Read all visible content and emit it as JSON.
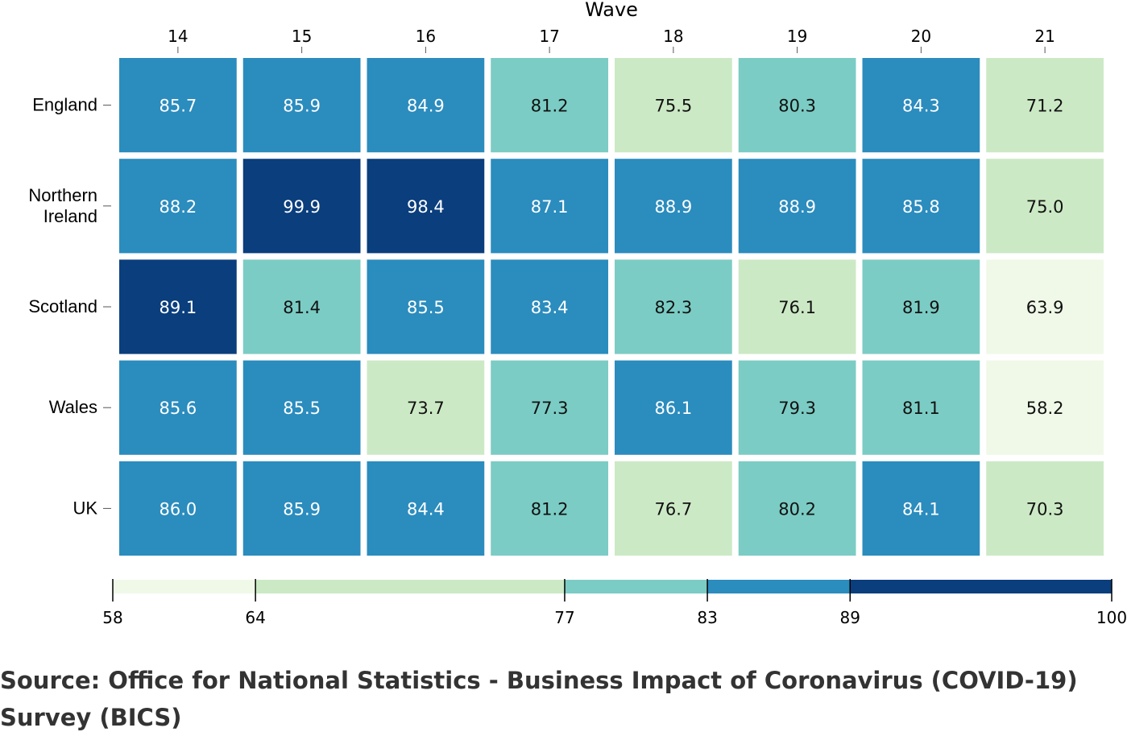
{
  "chart_data": {
    "type": "heatmap",
    "xlabel": "Wave",
    "columns": [
      "14",
      "15",
      "16",
      "17",
      "18",
      "19",
      "20",
      "21"
    ],
    "rows": [
      {
        "name": "England",
        "name_lines": [
          "England"
        ],
        "values": [
          85.7,
          85.9,
          84.9,
          81.2,
          75.5,
          80.3,
          84.3,
          71.2
        ]
      },
      {
        "name": "Northern Ireland",
        "name_lines": [
          "Northern",
          "Ireland"
        ],
        "values": [
          88.2,
          99.9,
          98.4,
          87.1,
          88.9,
          88.9,
          85.8,
          75.0
        ]
      },
      {
        "name": "Scotland",
        "name_lines": [
          "Scotland"
        ],
        "values": [
          89.1,
          81.4,
          85.5,
          83.4,
          82.3,
          76.1,
          81.9,
          63.9
        ]
      },
      {
        "name": "Wales",
        "name_lines": [
          "Wales"
        ],
        "values": [
          85.6,
          85.5,
          73.7,
          77.3,
          86.1,
          79.3,
          81.1,
          58.2
        ]
      },
      {
        "name": "UK",
        "name_lines": [
          "UK"
        ],
        "values": [
          86.0,
          85.9,
          84.4,
          81.2,
          76.7,
          80.2,
          84.1,
          70.3
        ]
      }
    ],
    "legend": {
      "type": "threshold",
      "ticks": [
        "58",
        "64",
        "77",
        "83",
        "89",
        "100"
      ],
      "range": [
        58,
        100
      ],
      "bins": [
        {
          "from": 58,
          "to": 64,
          "color": "#f0f9e8"
        },
        {
          "from": 64,
          "to": 77,
          "color": "#cce9c5"
        },
        {
          "from": 77,
          "to": 83,
          "color": "#7bccc4"
        },
        {
          "from": 83,
          "to": 89,
          "color": "#2b8cbe"
        },
        {
          "from": 89,
          "to": 100,
          "color": "#0a3e7d"
        }
      ]
    },
    "grid": false
  },
  "source": "Source: Office for National Statistics - Business Impact of Coronavirus (COVID-19) Survey (BICS)"
}
